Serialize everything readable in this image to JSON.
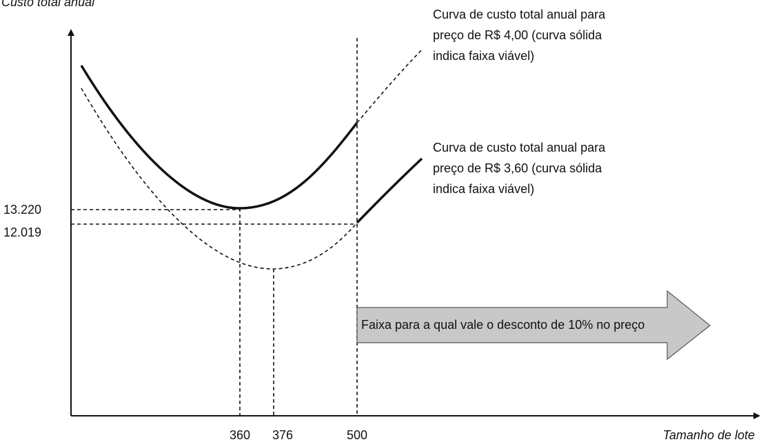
{
  "y_axis_label": "Custo total anual",
  "x_axis_label": "Tamanho de lote",
  "y_labels": [
    "13.220",
    "12.019"
  ],
  "x_labels": [
    "360",
    "376",
    "500"
  ],
  "annotations": [
    {
      "lines": [
        "Curva de custo total anual para",
        "preço de R$ 4,00 (curva sólida",
        "indica faixa viável)"
      ]
    },
    {
      "lines": [
        "Curva de custo total anual para",
        "preço de R$ 3,60 (curva sólida",
        "indica faixa viável)"
      ]
    }
  ],
  "arrow_label": "Faixa para a qual vale o desconto de 10% no preço"
}
